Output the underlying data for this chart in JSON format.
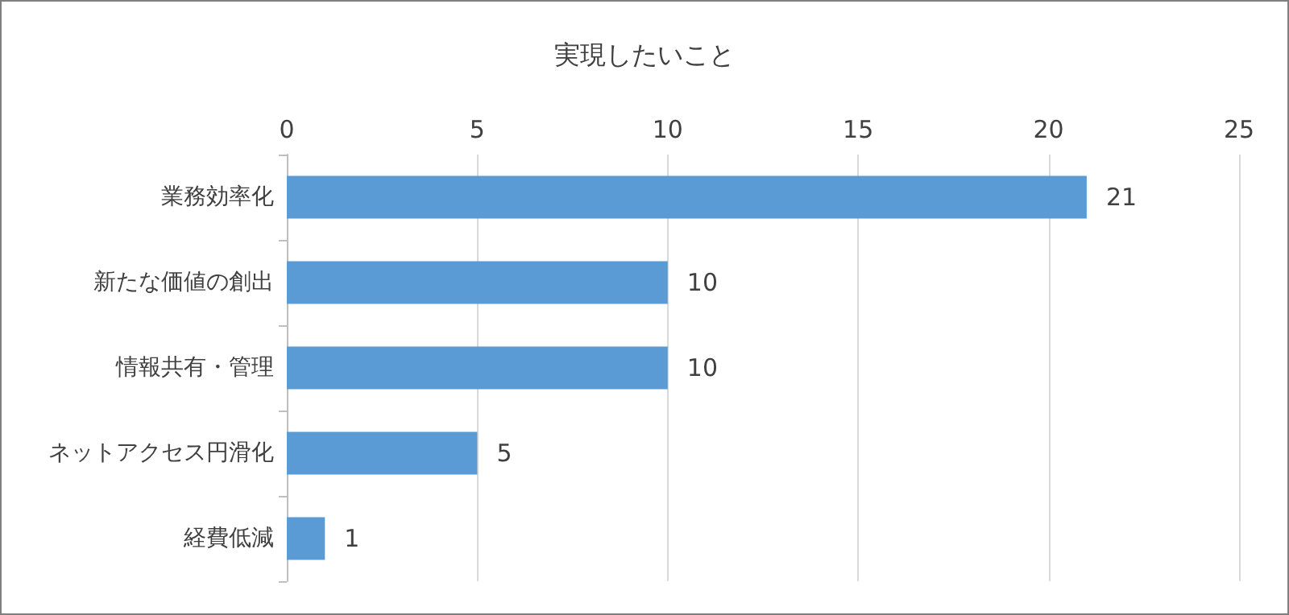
{
  "chart_data": {
    "type": "bar",
    "orientation": "horizontal",
    "title": "実現したいこと",
    "categories": [
      "業務効率化",
      "新たな価値の創出",
      "情報共有・管理",
      "ネットアクセス円滑化",
      "経費低減"
    ],
    "values": [
      21,
      10,
      10,
      5,
      1
    ],
    "color": "#5b9bd5",
    "xlim": [
      0,
      25
    ],
    "xticks": [
      0,
      5,
      10,
      15,
      20,
      25
    ],
    "grid": "x",
    "data_labels": true
  }
}
